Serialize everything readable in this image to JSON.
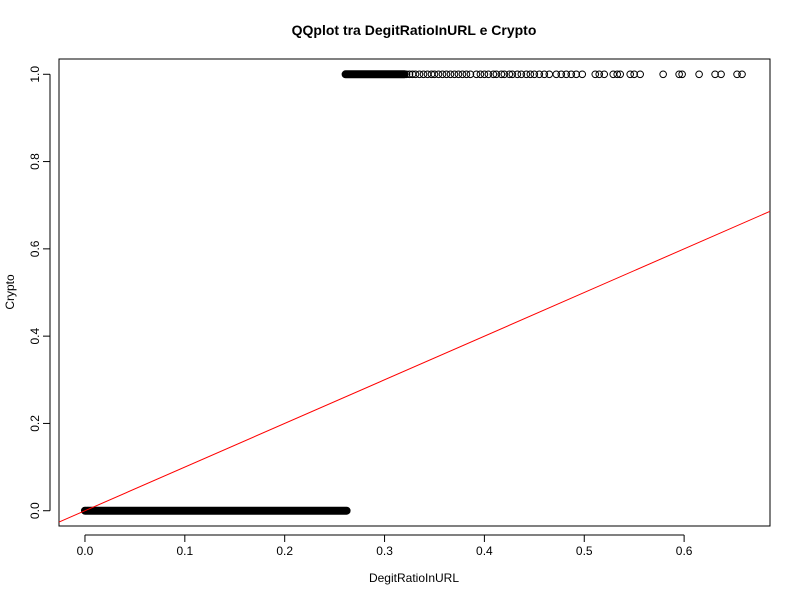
{
  "chart_data": {
    "type": "scatter",
    "title": "QQplot tra DegitRatioInURL e Crypto",
    "xlabel": "DegitRatioInURL",
    "ylabel": "Crypto",
    "xlim": [
      -0.026,
      0.686
    ],
    "ylim": [
      -0.035,
      1.035
    ],
    "x_ticks": [
      0.0,
      0.1,
      0.2,
      0.3,
      0.4,
      0.5,
      0.6
    ],
    "x_tick_labels": [
      "0.0",
      "0.1",
      "0.2",
      "0.3",
      "0.4",
      "0.5",
      "0.6"
    ],
    "y_ticks": [
      0.0,
      0.2,
      0.4,
      0.6,
      0.8,
      1.0
    ],
    "y_tick_labels": [
      "0.0",
      "0.2",
      "0.4",
      "0.6",
      "0.8",
      "1.0"
    ],
    "grid": false,
    "legend": "none",
    "colors": {
      "points": "#000000",
      "reference_line": "#ff0000"
    },
    "series": [
      {
        "marker": "open-circle",
        "y": 0,
        "x_dense_range": [
          0.0,
          0.262
        ],
        "x": [
          0.0,
          0.003,
          0.006,
          0.009,
          0.012
        ]
      },
      {
        "marker": "open-circle",
        "y": 1,
        "x_dense_range": [
          0.261,
          0.32
        ],
        "x": [
          0.322,
          0.325,
          0.328,
          0.331,
          0.335,
          0.339,
          0.343,
          0.347,
          0.35,
          0.354,
          0.358,
          0.362,
          0.366,
          0.37,
          0.374,
          0.378,
          0.382,
          0.386,
          0.392,
          0.396,
          0.4,
          0.404,
          0.409,
          0.412,
          0.417,
          0.42,
          0.425,
          0.428,
          0.433,
          0.437,
          0.442,
          0.446,
          0.45,
          0.455,
          0.46,
          0.465,
          0.472,
          0.477,
          0.482,
          0.487,
          0.492,
          0.498,
          0.511,
          0.515,
          0.52,
          0.529,
          0.533,
          0.536,
          0.546,
          0.55,
          0.556,
          0.579,
          0.595,
          0.598,
          0.615,
          0.631,
          0.637,
          0.653,
          0.658
        ]
      }
    ],
    "reference_line": {
      "type": "qqline",
      "intercept": 0.0,
      "slope": 1.0
    }
  }
}
